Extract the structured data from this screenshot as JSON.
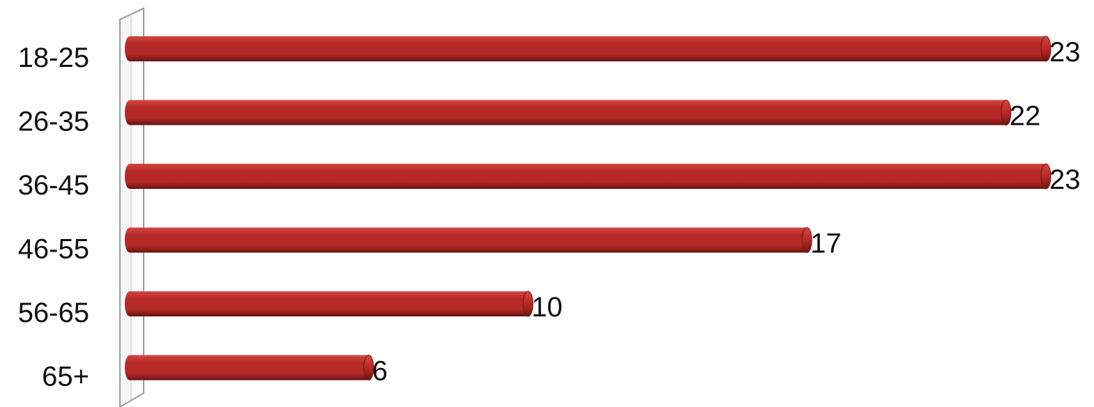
{
  "chart_data": {
    "type": "bar",
    "orientation": "horizontal",
    "title": "",
    "xlabel": "",
    "ylabel": "",
    "categories": [
      "18-25",
      "26-35",
      "36-45",
      "46-55",
      "56-65",
      "65+"
    ],
    "values": [
      23,
      22,
      23,
      17,
      10,
      6
    ],
    "data_labels": [
      "23",
      "22",
      "23",
      "17",
      "10",
      "6"
    ],
    "xlim": [
      0,
      23
    ],
    "grid": false,
    "legend": "none",
    "bar_color": "#b52a27",
    "bar_highlight": "#d4463f",
    "bar_shadow": "#6e1412"
  }
}
